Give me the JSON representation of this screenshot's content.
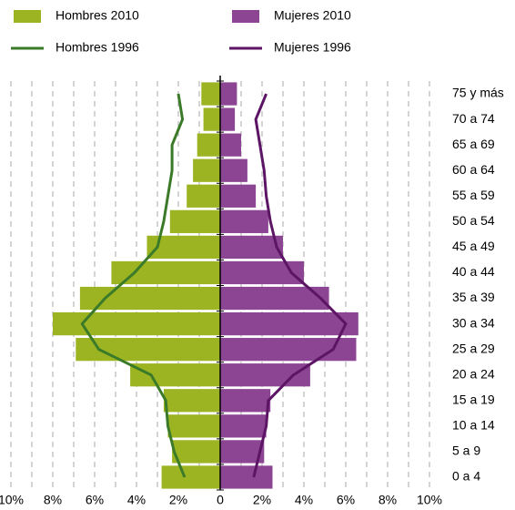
{
  "chart_data": {
    "type": "bar",
    "orientation": "horizontal",
    "categories": [
      "0 a 4",
      "5 a 9",
      "10 a 14",
      "15 a 19",
      "20 a 24",
      "25 a 29",
      "30 a 34",
      "35 a 39",
      "40 a 44",
      "45 a 49",
      "50 a 54",
      "55 a 59",
      "60 a 64",
      "65 a 69",
      "70 a 74",
      "75 y más"
    ],
    "series": [
      {
        "name": "Hombres 2010",
        "type": "bar",
        "color": "#9cb422",
        "values": [
          -2.8,
          -2.3,
          -2.5,
          -2.7,
          -4.3,
          -6.9,
          -8.0,
          -6.7,
          -5.2,
          -3.5,
          -2.4,
          -1.6,
          -1.3,
          -1.1,
          -0.8,
          -0.9
        ]
      },
      {
        "name": "Mujeres 2010",
        "type": "bar",
        "color": "#8c4593",
        "values": [
          2.5,
          2.1,
          2.2,
          2.4,
          4.3,
          6.5,
          6.6,
          5.2,
          4.0,
          3.0,
          2.3,
          1.7,
          1.3,
          1.0,
          0.7,
          0.8
        ]
      },
      {
        "name": "Hombres 1996",
        "type": "line",
        "color": "#3b7a28",
        "values": [
          -1.7,
          -2.2,
          -2.5,
          -2.6,
          -3.3,
          -5.8,
          -6.6,
          -5.5,
          -4.1,
          -3.0,
          -2.7,
          -2.5,
          -2.3,
          -2.3,
          -1.8,
          -2.0
        ]
      },
      {
        "name": "Mujeres 1996",
        "type": "line",
        "color": "#5c1464",
        "values": [
          1.6,
          1.9,
          2.2,
          2.3,
          3.5,
          5.4,
          6.0,
          4.8,
          3.4,
          2.7,
          2.4,
          2.2,
          2.1,
          1.9,
          1.7,
          2.2
        ]
      }
    ],
    "xlim": [
      -10,
      10
    ],
    "xticks": [
      {
        "value": -10,
        "label": "10%"
      },
      {
        "value": -8,
        "label": "8%"
      },
      {
        "value": -6,
        "label": "6%"
      },
      {
        "value": -4,
        "label": "4%"
      },
      {
        "value": -2,
        "label": "2%"
      },
      0,
      {
        "value": 2,
        "label": "2%"
      },
      {
        "value": 4,
        "label": "4%"
      },
      {
        "value": 6,
        "label": "6%"
      },
      {
        "value": 8,
        "label": "8%"
      },
      {
        "value": 10,
        "label": "10%"
      }
    ],
    "grid_step": 1,
    "grid": true
  }
}
